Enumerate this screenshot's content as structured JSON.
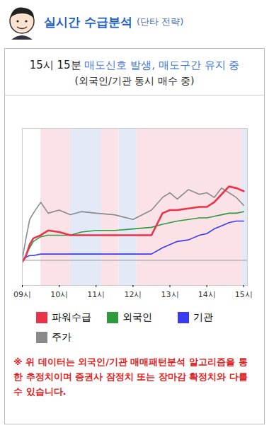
{
  "header": {
    "title": "실시간 수급분석",
    "subtitle": "(단타 전략)"
  },
  "headline": [
    {
      "text": "15시 15분",
      "color": "#222222"
    },
    {
      "text": "매도신호 발생, 매도구간 유지 중",
      "color": "#3f74d6"
    }
  ],
  "subheadline": "(외국인/기관 동시 매수 중)",
  "chart_data": {
    "type": "line",
    "x": [
      9.0,
      9.1,
      9.2,
      9.3,
      9.5,
      9.7,
      10.0,
      10.3,
      10.6,
      11.0,
      11.5,
      12.0,
      12.5,
      12.8,
      13.0,
      13.2,
      13.5,
      13.8,
      14.0,
      14.2,
      14.4,
      14.6,
      14.8,
      15.0
    ],
    "series": [
      {
        "name": "파워수급",
        "color": "#e8334a",
        "values": [
          -1,
          3,
          10,
          14,
          16,
          19,
          18,
          16,
          16,
          16,
          16,
          16,
          16,
          30,
          32,
          32,
          33,
          34,
          34,
          37,
          42,
          47,
          46,
          44
        ]
      },
      {
        "name": "외국인",
        "color": "#2e9a3e",
        "values": [
          -1,
          3,
          8,
          12,
          15,
          16,
          16,
          16,
          18,
          19,
          19,
          20,
          21,
          23,
          24,
          25,
          26,
          27,
          27,
          28,
          29,
          30,
          30,
          31
        ]
      },
      {
        "name": "기관",
        "color": "#3a3af0",
        "values": [
          -1,
          2,
          3,
          3,
          4,
          4,
          4,
          4,
          4,
          4,
          4,
          4,
          4,
          8,
          10,
          12,
          13,
          16,
          17,
          20,
          22,
          24,
          25,
          25
        ]
      },
      {
        "name": "주가",
        "color": "#8a8a8a",
        "values": [
          0.8,
          14,
          26,
          30,
          37,
          30,
          32,
          29,
          31,
          30,
          29,
          26,
          32,
          40,
          43,
          39,
          45,
          42,
          43,
          40,
          46,
          43,
          40,
          35
        ]
      }
    ],
    "bands": {
      "x_start": [
        9.5,
        10.3,
        11.15,
        11.62,
        12.1,
        14.95
      ],
      "x_end": [
        10.3,
        11.15,
        11.62,
        12.1,
        14.95,
        15.1
      ],
      "colors": [
        "#fbe2e7",
        "#e3e9f6",
        "#fbe2e7",
        "#e3e9f6",
        "#fbe2e7",
        "#e3e9f6"
      ]
    },
    "xlim": [
      9,
      15.1
    ],
    "xticks": [
      {
        "value": 9,
        "label": "09시"
      },
      {
        "value": 10,
        "label": "10시"
      },
      {
        "value": 11,
        "label": "11시"
      },
      {
        "value": 12,
        "label": "12시"
      },
      {
        "value": 13,
        "label": "13시"
      },
      {
        "value": 14,
        "label": "14시"
      },
      {
        "value": 15,
        "label": "15시"
      }
    ],
    "ylim": [
      -16,
      84
    ],
    "yticks": [
      0
    ],
    "grid": true,
    "tick_labels": "x"
  },
  "notice": "※ 위 데이터는 외국인/기관 매매패턴분석 알고리즘을 통한 추정치이며 증권사 잠정치 또는 장마감 확정치와 다를 수 있습니다."
}
